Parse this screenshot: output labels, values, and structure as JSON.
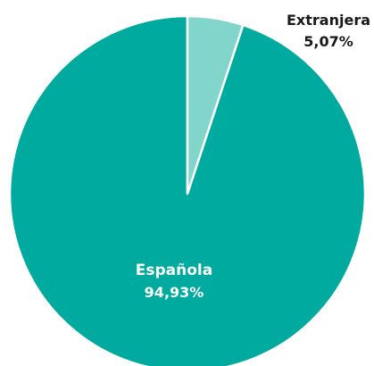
{
  "chart_data": {
    "type": "pie",
    "slices": [
      {
        "label": "Española",
        "value": 94.93,
        "value_label": "94,93%",
        "color": "#00aa9f",
        "label_color": "#ffffff"
      },
      {
        "label": "Extranjera",
        "value": 5.07,
        "value_label": "5,07%",
        "color": "#82d5cb",
        "label_color": "#1a1a1a"
      }
    ],
    "start_angle": "12 o'clock",
    "direction": "counter-clockwise for Española, clockwise for Extranjera"
  }
}
